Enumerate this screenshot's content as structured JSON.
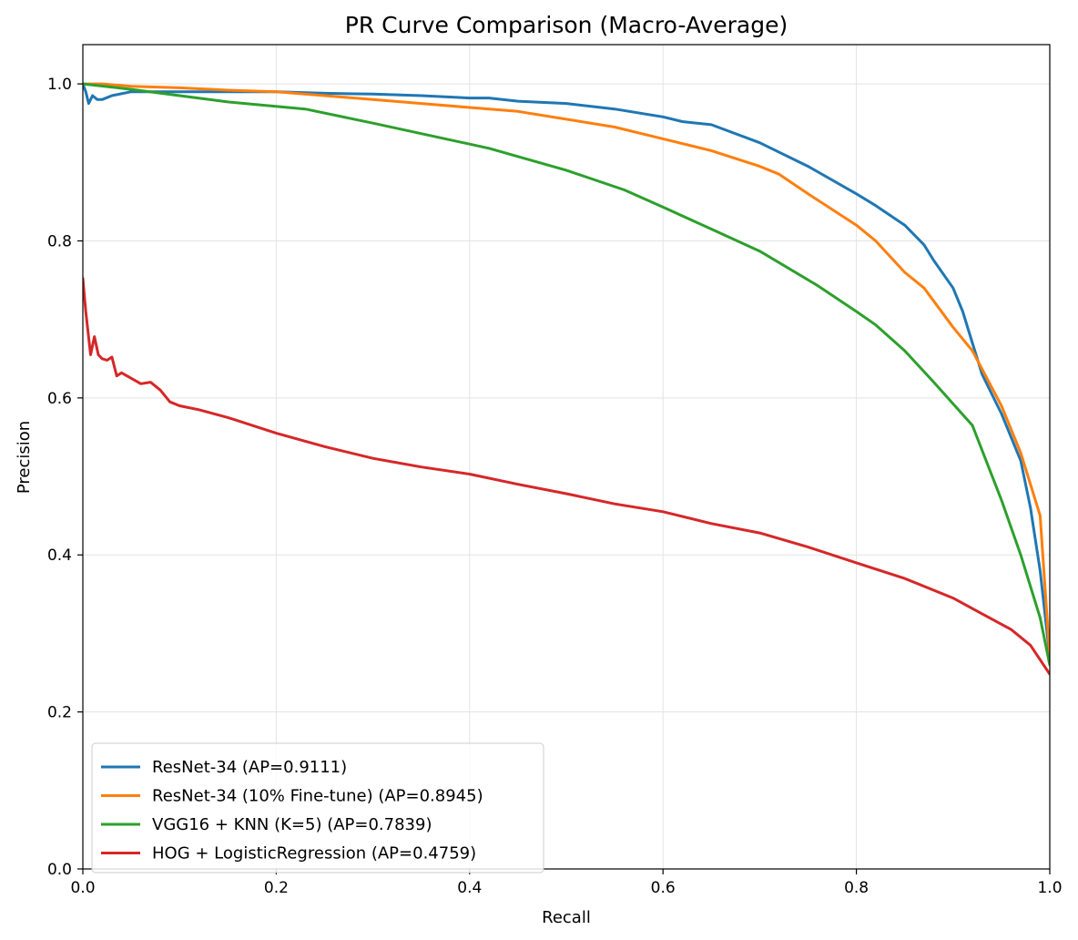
{
  "chart_data": {
    "type": "line",
    "title": "PR Curve Comparison (Macro-Average)",
    "xlabel": "Recall",
    "ylabel": "Precision",
    "xlim": [
      0,
      1
    ],
    "ylim": [
      0,
      1.05
    ],
    "xticks": [
      "0.0",
      "0.2",
      "0.4",
      "0.6",
      "0.8",
      "1.0"
    ],
    "yticks": [
      "0.0",
      "0.2",
      "0.4",
      "0.6",
      "0.8",
      "1.0"
    ],
    "grid": true,
    "legend_position": "lower-left",
    "series": [
      {
        "name": "ResNet-34 (AP=0.9111)",
        "color": "#1f77b4",
        "x": [
          0.0,
          0.003,
          0.006,
          0.01,
          0.015,
          0.02,
          0.03,
          0.05,
          0.1,
          0.15,
          0.2,
          0.25,
          0.3,
          0.35,
          0.4,
          0.42,
          0.45,
          0.5,
          0.55,
          0.6,
          0.62,
          0.65,
          0.7,
          0.75,
          0.8,
          0.82,
          0.85,
          0.87,
          0.88,
          0.9,
          0.91,
          0.92,
          0.93,
          0.95,
          0.97,
          0.98,
          0.99,
          1.0
        ],
        "y": [
          1.0,
          0.99,
          0.975,
          0.985,
          0.98,
          0.98,
          0.985,
          0.99,
          0.99,
          0.99,
          0.99,
          0.988,
          0.987,
          0.985,
          0.982,
          0.982,
          0.978,
          0.975,
          0.968,
          0.958,
          0.952,
          0.948,
          0.925,
          0.895,
          0.86,
          0.845,
          0.82,
          0.795,
          0.775,
          0.74,
          0.71,
          0.67,
          0.63,
          0.58,
          0.52,
          0.46,
          0.38,
          0.27
        ]
      },
      {
        "name": "ResNet-34 (10% Fine-tune) (AP=0.8945)",
        "color": "#ff7f0e",
        "x": [
          0.0,
          0.02,
          0.05,
          0.1,
          0.15,
          0.2,
          0.25,
          0.3,
          0.35,
          0.4,
          0.45,
          0.5,
          0.55,
          0.6,
          0.65,
          0.7,
          0.72,
          0.75,
          0.8,
          0.82,
          0.85,
          0.87,
          0.9,
          0.92,
          0.95,
          0.97,
          0.99,
          1.0
        ],
        "y": [
          1.0,
          1.0,
          0.997,
          0.995,
          0.992,
          0.99,
          0.985,
          0.98,
          0.975,
          0.97,
          0.965,
          0.955,
          0.945,
          0.93,
          0.915,
          0.895,
          0.885,
          0.86,
          0.82,
          0.8,
          0.76,
          0.74,
          0.69,
          0.66,
          0.59,
          0.53,
          0.45,
          0.27
        ]
      },
      {
        "name": "VGG16 + KNN  (K=5) (AP=0.7839)",
        "color": "#2ca02c",
        "x": [
          0.0,
          0.05,
          0.1,
          0.15,
          0.23,
          0.3,
          0.42,
          0.5,
          0.56,
          0.6,
          0.65,
          0.7,
          0.76,
          0.8,
          0.82,
          0.85,
          0.88,
          0.92,
          0.95,
          0.97,
          0.99,
          1.0
        ],
        "y": [
          1.0,
          0.993,
          0.985,
          0.977,
          0.968,
          0.95,
          0.918,
          0.89,
          0.865,
          0.843,
          0.815,
          0.787,
          0.743,
          0.71,
          0.693,
          0.66,
          0.62,
          0.565,
          0.47,
          0.4,
          0.32,
          0.26
        ]
      },
      {
        "name": "HOG + LogisticRegression (AP=0.4759)",
        "color": "#d62728",
        "x": [
          0.0,
          0.003,
          0.008,
          0.012,
          0.016,
          0.02,
          0.025,
          0.03,
          0.035,
          0.04,
          0.05,
          0.06,
          0.07,
          0.08,
          0.09,
          0.1,
          0.12,
          0.15,
          0.2,
          0.25,
          0.3,
          0.35,
          0.4,
          0.45,
          0.5,
          0.55,
          0.6,
          0.65,
          0.7,
          0.75,
          0.8,
          0.85,
          0.9,
          0.93,
          0.96,
          0.98,
          1.0
        ],
        "y": [
          0.752,
          0.71,
          0.655,
          0.678,
          0.655,
          0.65,
          0.648,
          0.652,
          0.628,
          0.632,
          0.625,
          0.618,
          0.62,
          0.61,
          0.595,
          0.59,
          0.585,
          0.575,
          0.555,
          0.538,
          0.523,
          0.512,
          0.503,
          0.49,
          0.478,
          0.465,
          0.455,
          0.44,
          0.428,
          0.41,
          0.39,
          0.37,
          0.345,
          0.325,
          0.305,
          0.285,
          0.248
        ]
      }
    ]
  }
}
